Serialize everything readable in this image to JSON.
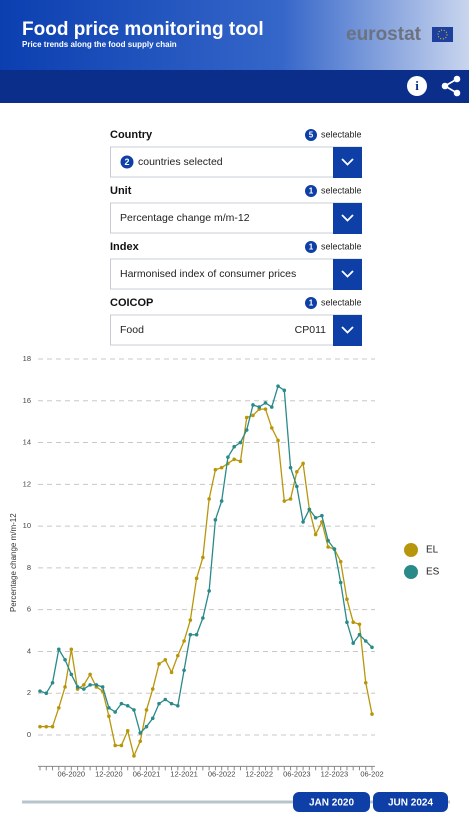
{
  "header": {
    "title": "Food price monitoring tool",
    "subtitle": "Price trends along the food supply chain",
    "logo": "eurostat"
  },
  "filters": [
    {
      "label": "Country",
      "count": 5,
      "note": "selectable",
      "value_count": 2,
      "value": "countries selected"
    },
    {
      "label": "Unit",
      "count": 1,
      "note": "selectable",
      "value": "Percentage change m/m-12"
    },
    {
      "label": "Index",
      "count": 1,
      "note": "selectable",
      "value": "Harmonised index of consumer prices"
    },
    {
      "label": "COICOP",
      "count": 1,
      "note": "selectable",
      "value": "Food",
      "code": "CP011"
    }
  ],
  "chart_data": {
    "type": "line",
    "y_label": "Percentage change m/m-12",
    "categories": [
      null,
      null,
      null,
      null,
      null,
      "06-2020",
      null,
      null,
      null,
      null,
      null,
      "12-2020",
      null,
      null,
      null,
      null,
      null,
      "06-2021",
      null,
      null,
      null,
      null,
      null,
      "12-2021",
      null,
      null,
      null,
      null,
      null,
      "06-2022",
      null,
      null,
      null,
      null,
      null,
      "12-2022",
      null,
      null,
      null,
      null,
      null,
      "06-2023",
      null,
      null,
      null,
      null,
      null,
      "12-2023",
      null,
      null,
      null,
      null,
      null,
      "06-202"
    ],
    "series": [
      {
        "name": "EL",
        "color": "#b8960c",
        "values": [
          0.4,
          0.4,
          0.4,
          1.3,
          2.3,
          4.1,
          2.2,
          2.4,
          2.9,
          2.3,
          2.1,
          0.9,
          -0.5,
          -0.5,
          0.2,
          -1.0,
          -0.3,
          1.2,
          2.2,
          3.4,
          3.6,
          3.0,
          3.8,
          4.5,
          5.5,
          7.5,
          8.5,
          11.3,
          12.7,
          12.8,
          13.0,
          13.2,
          13.1,
          15.2,
          15.3,
          15.6,
          15.6,
          14.7,
          14.1,
          11.2,
          11.3,
          12.6,
          13.0,
          10.8,
          9.6,
          10.2,
          9.0,
          8.9,
          8.3,
          6.5,
          5.4,
          5.3,
          2.5,
          1.0
        ]
      },
      {
        "name": "ES",
        "color": "#2a8a8a",
        "values": [
          2.1,
          2.0,
          2.5,
          4.1,
          3.6,
          2.9,
          2.3,
          2.2,
          2.4,
          2.4,
          2.3,
          1.3,
          1.1,
          1.5,
          1.4,
          1.2,
          0.1,
          0.4,
          0.8,
          1.5,
          1.7,
          1.5,
          1.4,
          3.1,
          4.8,
          4.8,
          5.6,
          6.9,
          10.3,
          11.2,
          13.3,
          13.8,
          14.0,
          14.6,
          15.8,
          15.7,
          15.9,
          15.7,
          16.7,
          16.5,
          12.8,
          11.9,
          10.2,
          10.8,
          10.4,
          10.5,
          9.3,
          8.9,
          7.3,
          5.4,
          4.4,
          4.8,
          4.5,
          4.2
        ]
      }
    ],
    "ylim": [
      -1.5,
      18
    ],
    "yticks": [
      0,
      2,
      4,
      6,
      8,
      10,
      12,
      14,
      16,
      18
    ],
    "grid": true,
    "legend": "right"
  },
  "slider": {
    "start": "JAN 2020",
    "end": "JUN 2024"
  }
}
